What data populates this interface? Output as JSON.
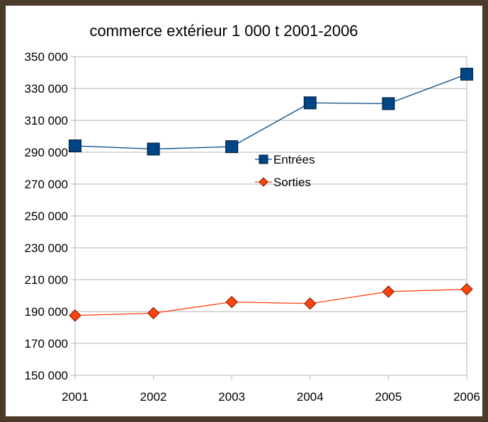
{
  "chart_data": {
    "type": "line",
    "title": "commerce extérieur 1 000 t 2001-2006",
    "categories": [
      "2001",
      "2002",
      "2003",
      "2004",
      "2005",
      "2006"
    ],
    "series": [
      {
        "name": "Entrées",
        "values": [
          294000,
          292000,
          293500,
          321000,
          320500,
          339000
        ],
        "color": "#004586",
        "marker": "square"
      },
      {
        "name": "Sorties",
        "values": [
          187500,
          189000,
          196000,
          195000,
          202500,
          204000
        ],
        "color": "#ff420e",
        "marker": "diamond"
      }
    ],
    "ylim": [
      150000,
      350000
    ],
    "y_ticks": [
      "150 000",
      "170 000",
      "190 000",
      "210 000",
      "230 000",
      "250 000",
      "270 000",
      "290 000",
      "310 000",
      "330 000",
      "350 000"
    ],
    "grid": "horizontal",
    "legend": "center"
  }
}
